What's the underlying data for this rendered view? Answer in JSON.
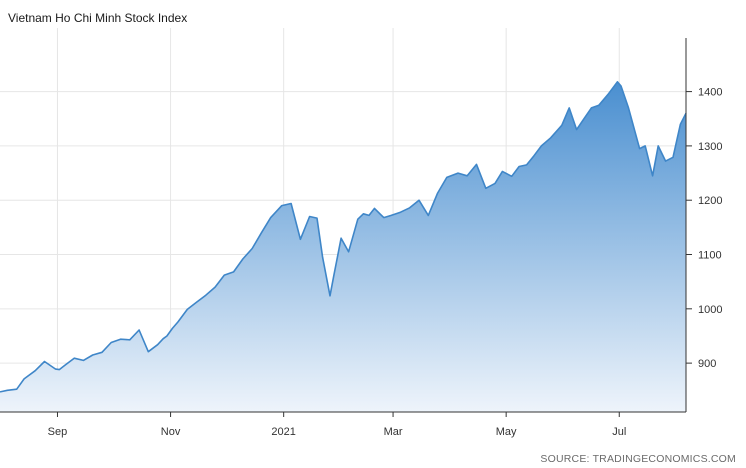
{
  "title": "Vietnam Ho Chi Minh Stock Index",
  "source": "SOURCE: TRADINGECONOMICS.COM",
  "colors": {
    "line": "#3f86c8",
    "fill_top": "#4a8fd0",
    "fill_bottom": "#eef4fb",
    "grid": "#e6e6e6",
    "axis": "#333333"
  },
  "chart_data": {
    "type": "area",
    "title": "Vietnam Ho Chi Minh Stock Index",
    "xlabel": "",
    "ylabel": "",
    "x_ticks": [
      "Sep",
      "Nov",
      "2021",
      "Mar",
      "May",
      "Jul"
    ],
    "y_ticks": [
      900,
      1000,
      1100,
      1200,
      1300,
      1400
    ],
    "ylim": [
      810,
      1495
    ],
    "xlim": [
      "2020-08-01",
      "2021-08-06"
    ],
    "grid": true,
    "legend": "none",
    "y_axis_side": "right",
    "series": [
      {
        "x": [
          "2020-08-01",
          "2020-08-05",
          "2020-08-10",
          "2020-08-14",
          "2020-08-20",
          "2020-08-25",
          "2020-08-31",
          "2020-09-02",
          "2020-09-05",
          "2020-09-10",
          "2020-09-15",
          "2020-09-20",
          "2020-09-25",
          "2020-09-30",
          "2020-10-05",
          "2020-10-10",
          "2020-10-15",
          "2020-10-20",
          "2020-10-25",
          "2020-10-28",
          "2020-10-30",
          "2020-11-02",
          "2020-11-05",
          "2020-11-10",
          "2020-11-15",
          "2020-11-20",
          "2020-11-25",
          "2020-11-30",
          "2020-12-05",
          "2020-12-10",
          "2020-12-15",
          "2020-12-20",
          "2020-12-25",
          "2020-12-31",
          "2021-01-05",
          "2021-01-10",
          "2021-01-15",
          "2021-01-19",
          "2021-01-22",
          "2021-01-26",
          "2021-01-28",
          "2021-02-01",
          "2021-02-05",
          "2021-02-10",
          "2021-02-13",
          "2021-02-16",
          "2021-02-19",
          "2021-02-24",
          "2021-02-28",
          "2021-03-05",
          "2021-03-10",
          "2021-03-15",
          "2021-03-20",
          "2021-03-25",
          "2021-03-30",
          "2021-04-05",
          "2021-04-10",
          "2021-04-15",
          "2021-04-20",
          "2021-04-25",
          "2021-04-29",
          "2021-05-04",
          "2021-05-08",
          "2021-05-12",
          "2021-05-16",
          "2021-05-20",
          "2021-05-25",
          "2021-05-31",
          "2021-06-04",
          "2021-06-08",
          "2021-06-12",
          "2021-06-16",
          "2021-06-20",
          "2021-06-25",
          "2021-06-30",
          "2021-07-02",
          "2021-07-06",
          "2021-07-08",
          "2021-07-12",
          "2021-07-15",
          "2021-07-19",
          "2021-07-22",
          "2021-07-26",
          "2021-07-30",
          "2021-08-03",
          "2021-08-06"
        ],
        "y": [
          847,
          850,
          852,
          871,
          886,
          903,
          889,
          888,
          896,
          909,
          905,
          915,
          920,
          938,
          944,
          943,
          961,
          921,
          934,
          945,
          950,
          964,
          976,
          999,
          1012,
          1025,
          1040,
          1062,
          1068,
          1092,
          1111,
          1140,
          1168,
          1190,
          1194,
          1128,
          1170,
          1167,
          1095,
          1024,
          1060,
          1130,
          1105,
          1165,
          1175,
          1172,
          1185,
          1168,
          1172,
          1178,
          1186,
          1200,
          1172,
          1213,
          1242,
          1250,
          1245,
          1266,
          1222,
          1231,
          1253,
          1244,
          1262,
          1265,
          1282,
          1300,
          1315,
          1338,
          1370,
          1330,
          1350,
          1370,
          1375,
          1395,
          1418,
          1410,
          1370,
          1345,
          1295,
          1300,
          1245,
          1300,
          1272,
          1279,
          1340,
          1360
        ]
      }
    ]
  }
}
